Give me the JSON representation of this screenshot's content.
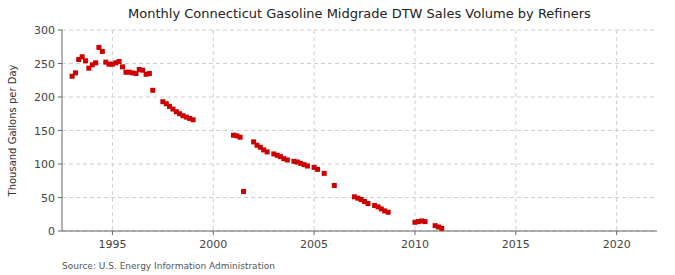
{
  "chart_data": {
    "type": "scatter",
    "title": "Monthly Connecticut Gasoline Midgrade DTW Sales Volume by Refiners",
    "ylabel": "Thousand Gallons per Day",
    "annotation": "Source: U.S. Energy Information Administration",
    "color": "#cc0000",
    "marker": "square",
    "grid": true,
    "xlim": [
      1992.5,
      2022
    ],
    "ylim": [
      0,
      300
    ],
    "xticks": [
      1995,
      2000,
      2005,
      2010,
      2015,
      2020
    ],
    "yticks": [
      0,
      50,
      100,
      150,
      200,
      250,
      300
    ],
    "x": [
      1993.0,
      1993.17,
      1993.33,
      1993.5,
      1993.67,
      1993.83,
      1994.0,
      1994.17,
      1994.33,
      1994.5,
      1994.67,
      1994.83,
      1995.0,
      1995.17,
      1995.33,
      1995.5,
      1995.67,
      1995.83,
      1996.0,
      1996.17,
      1996.33,
      1996.5,
      1996.67,
      1996.83,
      1997.0,
      1997.5,
      1997.67,
      1997.83,
      1998.0,
      1998.17,
      1998.33,
      1998.5,
      1998.67,
      1998.83,
      1999.0,
      2001.0,
      2001.17,
      2001.33,
      2001.5,
      2002.0,
      2002.17,
      2002.33,
      2002.5,
      2002.67,
      2003.0,
      2003.17,
      2003.33,
      2003.5,
      2003.67,
      2004.0,
      2004.17,
      2004.33,
      2004.5,
      2004.67,
      2005.0,
      2005.17,
      2005.5,
      2006.0,
      2007.0,
      2007.17,
      2007.33,
      2007.5,
      2007.67,
      2008.0,
      2008.17,
      2008.33,
      2008.5,
      2008.67,
      2010.0,
      2010.17,
      2010.33,
      2010.5,
      2011.0,
      2011.17,
      2011.33
    ],
    "values": [
      231,
      236,
      256,
      260,
      254,
      243,
      248,
      251,
      274,
      268,
      252,
      249,
      249,
      251,
      253,
      245,
      237,
      237,
      236,
      235,
      241,
      240,
      234,
      235,
      210,
      193,
      190,
      186,
      182,
      178,
      175,
      172,
      170,
      168,
      166,
      143,
      142,
      140,
      59,
      133,
      128,
      125,
      121,
      118,
      115,
      113,
      111,
      108,
      106,
      104,
      103,
      101,
      99,
      97,
      95,
      92,
      86,
      68,
      51,
      49,
      47,
      44,
      41,
      38,
      36,
      33,
      30,
      28,
      13,
      14,
      15,
      14,
      8,
      6,
      4
    ]
  }
}
